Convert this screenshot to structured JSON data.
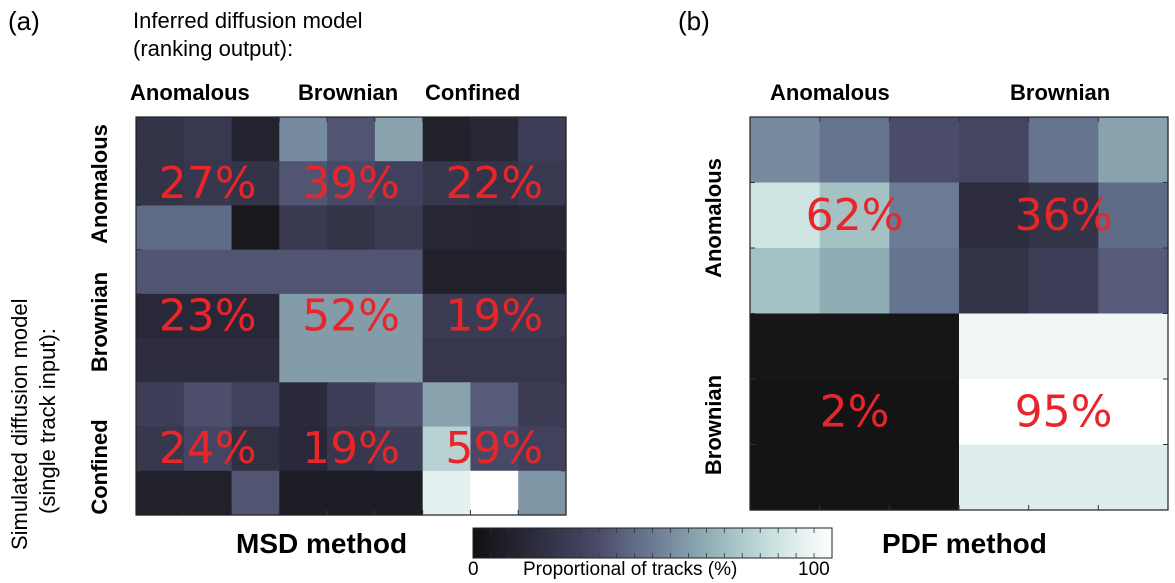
{
  "panel_a_label": "(a)",
  "panel_b_label": "(b)",
  "inferred_title_line1": "Inferred diffusion model",
  "inferred_title_line2": "(ranking output):",
  "simulated_title_line1": "Simulated diffusion model",
  "simulated_title_line2": "(single track input):",
  "colorbar": {
    "min_label": "0",
    "max_label": "100",
    "label": "Proportional of tracks (%)",
    "stops": [
      "#111111",
      "#2b2b3c",
      "#474765",
      "#6b7a95",
      "#93b3b8",
      "#c9e1df",
      "#ffffff"
    ]
  },
  "chart_data": [
    {
      "type": "heatmap",
      "title": "MSD method",
      "columns": [
        "Anomalous",
        "Brownian",
        "Confined"
      ],
      "rows": [
        "Anomalous",
        "Brownian",
        "Confined"
      ],
      "values": [
        [
          27,
          39,
          22
        ],
        [
          23,
          52,
          19
        ],
        [
          24,
          19,
          59
        ]
      ],
      "value_labels": [
        [
          "27%",
          "39%",
          "22%"
        ],
        [
          "23%",
          "52%",
          "19%"
        ],
        [
          "24%",
          "19%",
          "59%"
        ]
      ],
      "sub_grid": 3,
      "sub_cell_values": [
        [
          22,
          25,
          12,
          55,
          38,
          62,
          10,
          14,
          28
        ],
        [
          22,
          24,
          22,
          38,
          34,
          30,
          24,
          22,
          25
        ],
        [
          45,
          45,
          5,
          25,
          22,
          26,
          14,
          13,
          14
        ],
        [
          38,
          38,
          38,
          38,
          38,
          38,
          10,
          10,
          10
        ],
        [
          15,
          15,
          15,
          60,
          60,
          60,
          26,
          26,
          26
        ],
        [
          18,
          18,
          18,
          60,
          60,
          60,
          23,
          23,
          23
        ],
        [
          28,
          36,
          30,
          16,
          28,
          36,
          62,
          40,
          26
        ],
        [
          24,
          32,
          20,
          15,
          24,
          28,
          78,
          34,
          30
        ],
        [
          10,
          10,
          38,
          8,
          8,
          8,
          92,
          100,
          58
        ]
      ]
    },
    {
      "type": "heatmap",
      "title": "PDF method",
      "columns": [
        "Anomalous",
        "Brownian"
      ],
      "rows": [
        "Anomalous",
        "Brownian"
      ],
      "values": [
        [
          62,
          36
        ],
        [
          2,
          95
        ]
      ],
      "value_labels": [
        [
          "62%",
          "36%"
        ],
        [
          "2%",
          "95%"
        ]
      ],
      "sub_grid": 3,
      "sub_cell_values": [
        [
          55,
          48,
          35,
          32,
          48,
          62
        ],
        [
          85,
          72,
          50,
          18,
          22,
          45
        ],
        [
          72,
          65,
          48,
          22,
          28,
          40
        ],
        [
          3,
          3,
          3,
          95,
          95,
          95
        ],
        [
          2,
          2,
          2,
          100,
          100,
          100
        ],
        [
          2,
          2,
          2,
          90,
          90,
          90
        ]
      ]
    }
  ]
}
